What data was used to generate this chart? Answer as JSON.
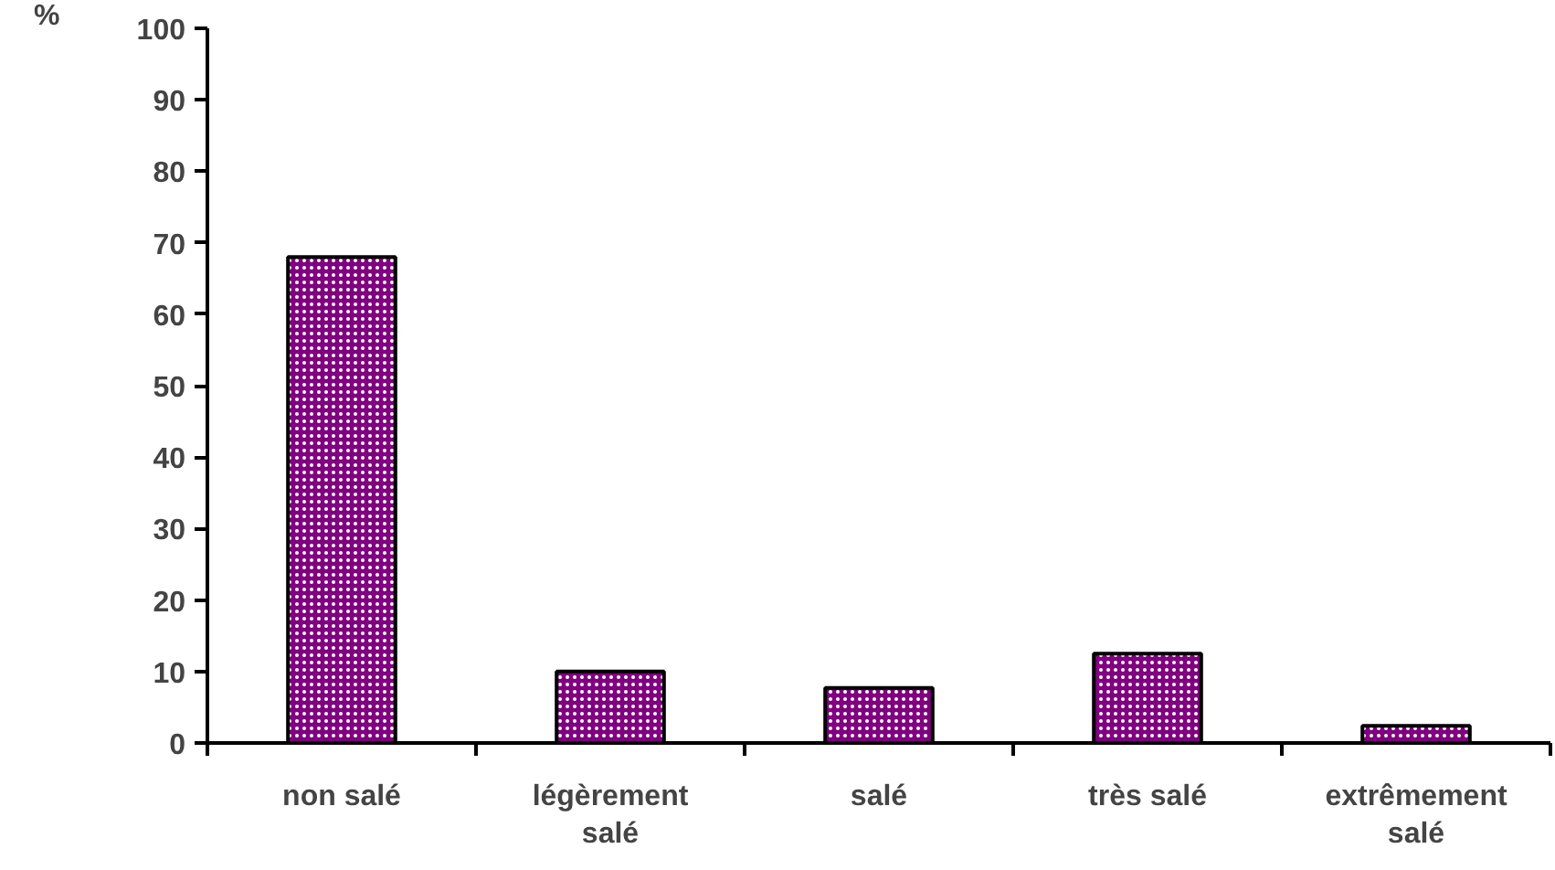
{
  "chart_data": {
    "type": "bar",
    "ylabel": "%",
    "categories": [
      "non salé",
      "légèrement salé",
      "salé",
      "très salé",
      "extrêmement salé"
    ],
    "values": [
      68.0,
      10.0,
      7.7,
      12.5,
      2.4
    ],
    "color": "#800080",
    "ylim": [
      0,
      100
    ],
    "yticks": [
      0,
      10,
      20,
      30,
      40,
      50,
      60,
      70,
      80,
      90,
      100
    ],
    "grid": false
  }
}
